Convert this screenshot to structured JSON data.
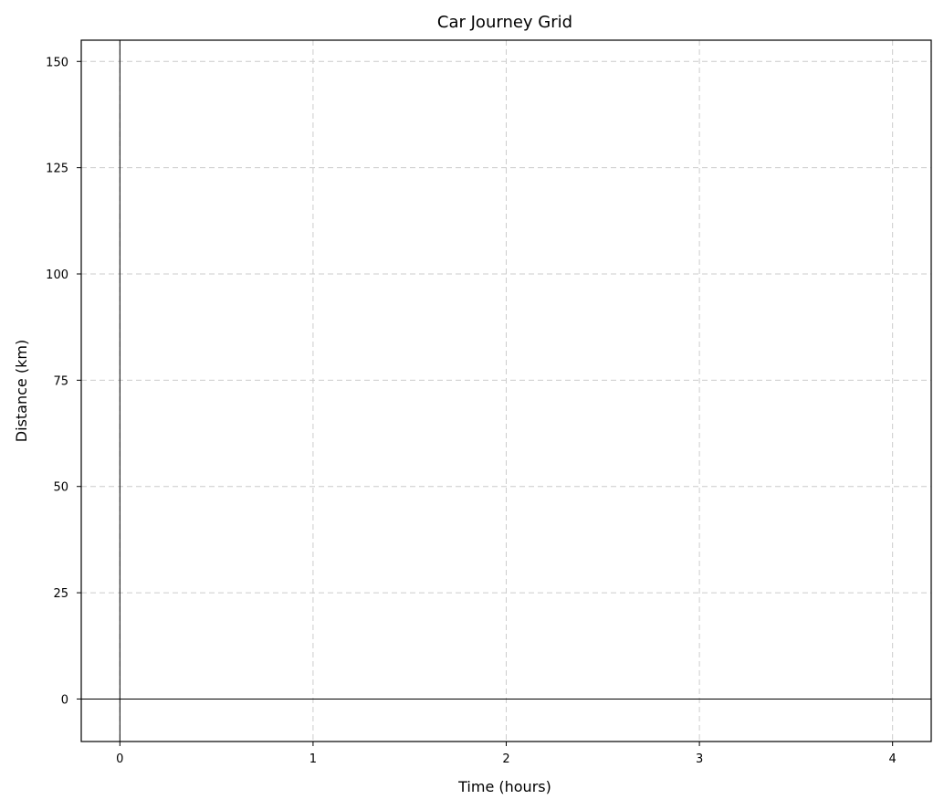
{
  "chart_data": {
    "type": "line",
    "title": "Car Journey Grid",
    "xlabel": "Time (hours)",
    "ylabel": "Distance (km)",
    "xlim": [
      -0.2,
      4.2
    ],
    "ylim": [
      -10,
      155
    ],
    "xticks": [
      0,
      1,
      2,
      3,
      4
    ],
    "yticks": [
      0,
      25,
      50,
      75,
      100,
      125,
      150
    ],
    "grid": true,
    "zero_lines": true,
    "series": []
  }
}
